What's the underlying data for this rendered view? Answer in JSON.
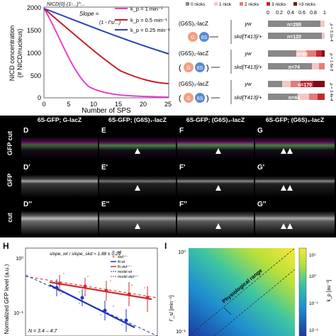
{
  "panel_b": {
    "formula_top": "NICD(0)·(1-...)^...",
    "formula_slope_lhs": "Slope = ",
    "formula_slope_rhs": "(1 - Γs/...)",
    "legend": [
      "k_p = 1 min⁻¹",
      "k_p = 0.5 min⁻¹",
      "k_p = 0.25 min⁻¹"
    ],
    "ylabel_line1": "NICD concentration",
    "ylabel_line2": "(# NICD/nucleus)",
    "xlabel": "Number of SPS",
    "yticks": [
      "2000",
      "1500",
      "1000",
      "500",
      "0"
    ],
    "xticks": [
      "0",
      "5",
      "10",
      "15",
      "20",
      "25"
    ],
    "colors": [
      "#e63fd1",
      "#c41f24",
      "#2a3fb8"
    ]
  },
  "panel_c": {
    "legend": [
      "0 nicks",
      "1 nick",
      "2 nicks",
      "3 nicks",
      ">3 nicks"
    ],
    "axis_ticks": [
      "0",
      "0.2",
      "0.4",
      "0.6",
      "0.8",
      "1"
    ],
    "constructs": [
      "(G6S)₁-lacZ",
      "(G6S)₂-lacZ",
      "(G6S)₃-lacZ"
    ],
    "genotypes": [
      "yw",
      "skd[T413]/+",
      "yw",
      "skd[T413]/+",
      "yw",
      "skd[T413]/+"
    ],
    "n_labels": [
      "n=288",
      "n=120",
      "n=90",
      "n=74",
      "n=170",
      "n=44"
    ],
    "pvals": [
      "p = 5.1e-4",
      "p = 1.6e-5",
      "p = 3.4e-4"
    ],
    "colors": [
      "#888888",
      "#f4c7c7",
      "#e57b7b",
      "#c2282f",
      "#7a0f14"
    ]
  },
  "micrographs": {
    "headers": [
      "6S-GFP; G-lacZ",
      "6S-GFP; (G6S)₁-lacZ",
      "6S-GFP; (G6S)₂-lacZ",
      "6S-GFP; (G6S)₃-lacZ"
    ],
    "row_labels": [
      "GFP cut",
      "GFP",
      "cut"
    ],
    "tiles": [
      "D",
      "E",
      "F",
      "G",
      "D'",
      "E'",
      "F'",
      "G'",
      "D''",
      "E''",
      "F''",
      "G''"
    ]
  },
  "panel_h": {
    "letter": "H",
    "slope_ratio": "slope_wt / slope_skd ≈ 1.88 ± 0.29",
    "legend": [
      "wt",
      "skd⁺ᐟ⁻",
      "fit wt",
      "fit skd⁺ᐟ⁻",
      "model wt",
      "model skd⁺ᐟ⁻"
    ],
    "ylabel": "Normalized GFP level (a.u.)",
    "n_text": "N = 3.4 – 4.7",
    "yticks": [
      "10⁰",
      "10⁻¹"
    ],
    "colors": [
      "#2233bb",
      "#d22a2a"
    ]
  },
  "panel_i": {
    "letter": "I",
    "annotation": "Physiological range",
    "ylabel": "Γ_s/ [min⁻¹]",
    "colorbar_label": "k_p [au⁻¹]",
    "yticks": [
      "10⁰",
      "10⁻¹"
    ],
    "cb_ticks": [
      "10¹",
      "10⁰",
      "10⁻¹",
      "10⁻²"
    ]
  }
}
